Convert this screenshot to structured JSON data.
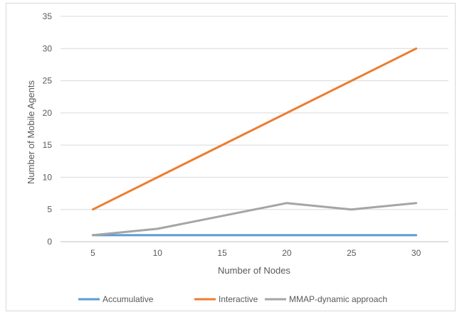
{
  "chart_data": {
    "type": "line",
    "title": "",
    "xlabel": "Number of Nodes",
    "ylabel": "Number of Mobile Agents",
    "categories": [
      "5",
      "10",
      "15",
      "20",
      "25",
      "30"
    ],
    "ylim": [
      0,
      35
    ],
    "yticks": [
      "0",
      "5",
      "10",
      "15",
      "20",
      "25",
      "30",
      "35"
    ],
    "grid": "horizontal",
    "legend_position": "bottom",
    "series": [
      {
        "name": "Accumulative",
        "color": "#5b9bd5",
        "values": [
          1,
          1,
          1,
          1,
          1,
          1
        ]
      },
      {
        "name": "Interactive",
        "color": "#ed7d31",
        "values": [
          5,
          10,
          15,
          20,
          25,
          30
        ]
      },
      {
        "name": "MMAP-dynamic approach",
        "color": "#a5a5a5",
        "values": [
          1,
          2,
          4,
          6,
          5,
          6
        ]
      }
    ]
  }
}
